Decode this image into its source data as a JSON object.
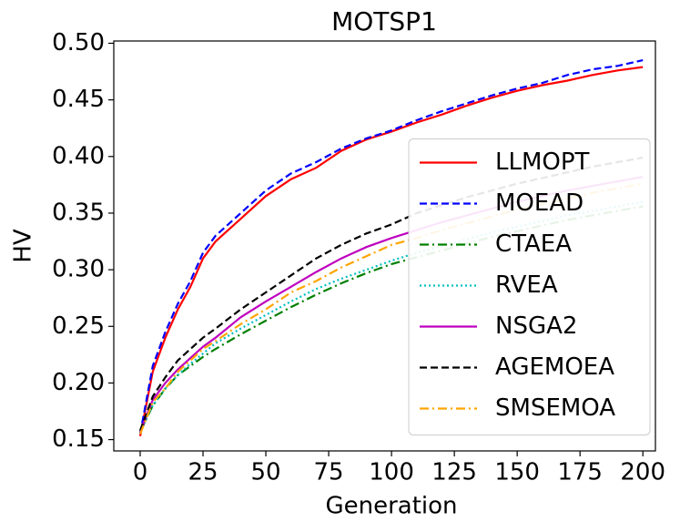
{
  "chart_data": {
    "type": "line",
    "title": "MOTSP1",
    "xlabel": "Generation",
    "ylabel": "HV",
    "x": [
      0,
      5,
      10,
      15,
      20,
      25,
      30,
      40,
      50,
      60,
      70,
      80,
      90,
      100,
      110,
      120,
      130,
      140,
      150,
      160,
      170,
      180,
      190,
      200
    ],
    "series": [
      {
        "name": "LLMOPT",
        "color": "#ff0000",
        "dash": "solid",
        "values": [
          0.153,
          0.21,
          0.24,
          0.265,
          0.285,
          0.31,
          0.325,
          0.345,
          0.365,
          0.38,
          0.39,
          0.405,
          0.415,
          0.422,
          0.43,
          0.437,
          0.445,
          0.452,
          0.458,
          0.463,
          0.467,
          0.472,
          0.476,
          0.479
        ]
      },
      {
        "name": "MOEAD",
        "color": "#0000ff",
        "dash": "dashed",
        "values": [
          0.155,
          0.215,
          0.245,
          0.27,
          0.29,
          0.315,
          0.33,
          0.35,
          0.37,
          0.385,
          0.395,
          0.407,
          0.416,
          0.423,
          0.432,
          0.44,
          0.447,
          0.454,
          0.46,
          0.465,
          0.472,
          0.477,
          0.48,
          0.485
        ]
      },
      {
        "name": "CTAEA",
        "color": "#008000",
        "dash": "dashdot",
        "values": [
          0.157,
          0.18,
          0.195,
          0.207,
          0.215,
          0.223,
          0.23,
          0.243,
          0.255,
          0.267,
          0.278,
          0.288,
          0.297,
          0.305,
          0.311,
          0.317,
          0.323,
          0.329,
          0.334,
          0.339,
          0.344,
          0.348,
          0.352,
          0.356
        ]
      },
      {
        "name": "RVEA",
        "color": "#00bfbf",
        "dash": "dotted",
        "values": [
          0.157,
          0.18,
          0.195,
          0.207,
          0.217,
          0.226,
          0.235,
          0.248,
          0.26,
          0.272,
          0.283,
          0.292,
          0.3,
          0.308,
          0.315,
          0.321,
          0.327,
          0.333,
          0.338,
          0.343,
          0.348,
          0.352,
          0.356,
          0.36
        ]
      },
      {
        "name": "NSGA2",
        "color": "#bf00bf",
        "dash": "solid",
        "values": [
          0.157,
          0.185,
          0.2,
          0.212,
          0.222,
          0.232,
          0.24,
          0.258,
          0.272,
          0.285,
          0.298,
          0.31,
          0.32,
          0.328,
          0.335,
          0.342,
          0.348,
          0.354,
          0.36,
          0.365,
          0.37,
          0.374,
          0.378,
          0.382
        ]
      },
      {
        "name": "AGEMOEA",
        "color": "#000000",
        "dash": "dashed",
        "values": [
          0.158,
          0.188,
          0.205,
          0.22,
          0.23,
          0.24,
          0.248,
          0.265,
          0.28,
          0.295,
          0.31,
          0.322,
          0.332,
          0.34,
          0.35,
          0.357,
          0.364,
          0.37,
          0.376,
          0.381,
          0.386,
          0.391,
          0.395,
          0.399
        ]
      },
      {
        "name": "SMSEMOA",
        "color": "#ffa500",
        "dash": "dashdot",
        "values": [
          0.155,
          0.183,
          0.195,
          0.21,
          0.22,
          0.23,
          0.237,
          0.252,
          0.265,
          0.28,
          0.29,
          0.302,
          0.312,
          0.322,
          0.328,
          0.335,
          0.341,
          0.347,
          0.353,
          0.358,
          0.363,
          0.368,
          0.372,
          0.376
        ]
      }
    ],
    "xlim": [
      -10.5,
      205
    ],
    "xticks": [
      0,
      25,
      50,
      75,
      100,
      125,
      150,
      175,
      200
    ],
    "ylim": [
      0.14,
      0.502
    ],
    "yticks": [
      0.15,
      {
        "value": 0.2,
        "label": "0.20"
      },
      0.25,
      {
        "value": 0.3,
        "label": "0.30"
      },
      0.35,
      {
        "value": 0.4,
        "label": "0.40"
      },
      0.45,
      {
        "value": 0.5,
        "label": "0.50"
      }
    ],
    "legend": "center right",
    "grid": false
  }
}
